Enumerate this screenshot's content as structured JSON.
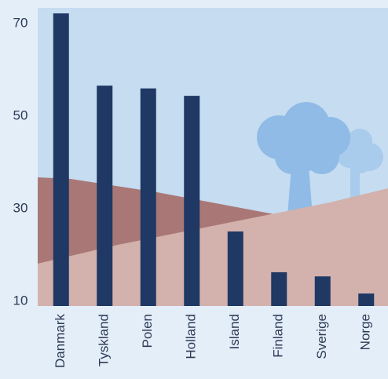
{
  "chart_data": {
    "type": "bar",
    "categories": [
      "Danmark",
      "Tyskland",
      "Polen",
      "Holland",
      "Island",
      "Finland",
      "Sverige",
      "Norge"
    ],
    "values": [
      72.2,
      56.6,
      56,
      54.4,
      25.1,
      16.3,
      15.4,
      11.7
    ],
    "color": "#1f3864",
    "ylim": [
      9,
      73.4
    ],
    "yticks": [
      10,
      30,
      50,
      70
    ],
    "grid": false
  }
}
